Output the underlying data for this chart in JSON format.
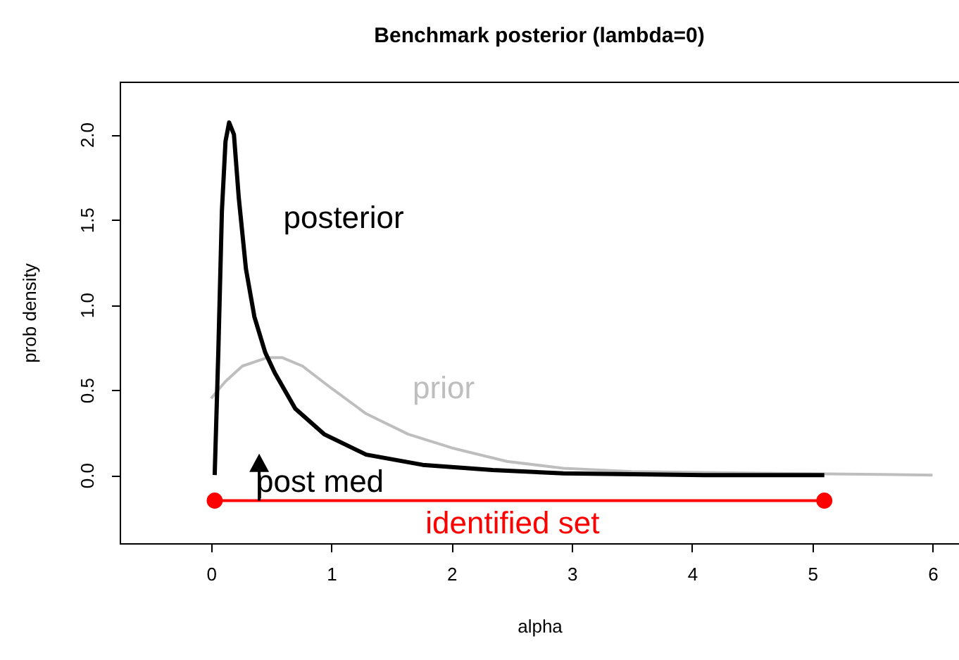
{
  "chart_data": {
    "type": "line",
    "title": "Benchmark posterior (lambda=0)",
    "xlabel": "alpha",
    "ylabel": "prob density",
    "xlim": [
      -0.76,
      6.22
    ],
    "ylim": [
      -0.4,
      2.31
    ],
    "xticks": [
      0,
      1,
      2,
      3,
      4,
      5,
      6
    ],
    "yticks": [
      {
        "value": 0,
        "label": "0.0"
      },
      {
        "value": 0.5,
        "label": "0.5"
      },
      {
        "value": 1,
        "label": "1.0"
      },
      {
        "value": 1.5,
        "label": "1.5"
      },
      {
        "value": 2,
        "label": "2.0"
      }
    ],
    "grid": false,
    "legend": false,
    "marker": "none",
    "line_style": "solid",
    "series": [
      {
        "color": "#bebebe",
        "x": [
          0.0,
          0.12,
          0.26,
          0.47,
          0.59,
          0.76,
          1.0,
          1.29,
          1.64,
          2.0,
          2.46,
          2.93,
          3.5,
          4.7,
          6.0
        ],
        "values": [
          0.45,
          0.55,
          0.64,
          0.69,
          0.69,
          0.64,
          0.51,
          0.36,
          0.24,
          0.16,
          0.08,
          0.04,
          0.02,
          0.01,
          0.0
        ]
      },
      {
        "color": "#000000",
        "x": [
          0.03,
          0.06,
          0.09,
          0.12,
          0.15,
          0.19,
          0.23,
          0.29,
          0.36,
          0.45,
          0.53,
          0.7,
          0.94,
          1.29,
          1.76,
          2.34,
          2.93,
          4.1,
          5.1
        ],
        "values": [
          0.0,
          0.72,
          1.55,
          1.96,
          2.07,
          2.0,
          1.63,
          1.21,
          0.93,
          0.72,
          0.6,
          0.39,
          0.24,
          0.12,
          0.06,
          0.03,
          0.01,
          0.0,
          0.0
        ]
      },
      {
        "color": "#ff0000",
        "marker": "circle",
        "x": [
          0.03,
          5.1
        ],
        "values": [
          -0.15,
          -0.15
        ]
      }
    ],
    "annotations": [
      "posterior",
      "prior",
      {
        "text": "post med",
        "x": 0.4,
        "y": 0.06
      },
      "identified set"
    ]
  }
}
